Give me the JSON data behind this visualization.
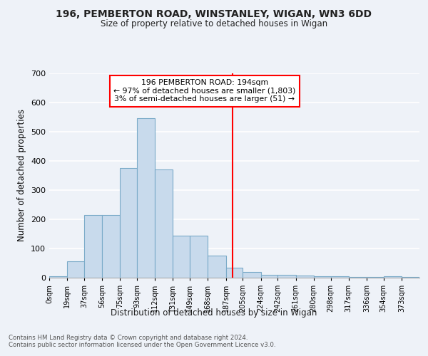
{
  "title1": "196, PEMBERTON ROAD, WINSTANLEY, WIGAN, WN3 6DD",
  "title2": "Size of property relative to detached houses in Wigan",
  "xlabel": "Distribution of detached houses by size in Wigan",
  "ylabel": "Number of detached properties",
  "bin_labels": [
    "0sqm",
    "19sqm",
    "37sqm",
    "56sqm",
    "75sqm",
    "93sqm",
    "112sqm",
    "131sqm",
    "149sqm",
    "168sqm",
    "187sqm",
    "205sqm",
    "224sqm",
    "242sqm",
    "261sqm",
    "280sqm",
    "298sqm",
    "317sqm",
    "336sqm",
    "354sqm",
    "373sqm"
  ],
  "bar_heights": [
    5,
    55,
    215,
    215,
    375,
    545,
    370,
    143,
    143,
    75,
    33,
    20,
    10,
    10,
    7,
    5,
    5,
    2,
    2,
    5,
    2
  ],
  "bar_color": "#c8daec",
  "bar_edge_color": "#7aaac8",
  "property_line_x": 194,
  "bin_edges": [
    0,
    19,
    37,
    56,
    75,
    93,
    112,
    131,
    149,
    168,
    187,
    205,
    224,
    242,
    261,
    280,
    298,
    317,
    336,
    354,
    373,
    392
  ],
  "annotation_line1": "196 PEMBERTON ROAD: 194sqm",
  "annotation_line2": "← 97% of detached houses are smaller (1,803)",
  "annotation_line3": "3% of semi-detached houses are larger (51) →",
  "ylim": [
    0,
    700
  ],
  "yticks": [
    0,
    100,
    200,
    300,
    400,
    500,
    600,
    700
  ],
  "footer_text": "Contains HM Land Registry data © Crown copyright and database right 2024.\nContains public sector information licensed under the Open Government Licence v3.0.",
  "bg_color": "#eef2f8",
  "grid_color": "#ffffff"
}
